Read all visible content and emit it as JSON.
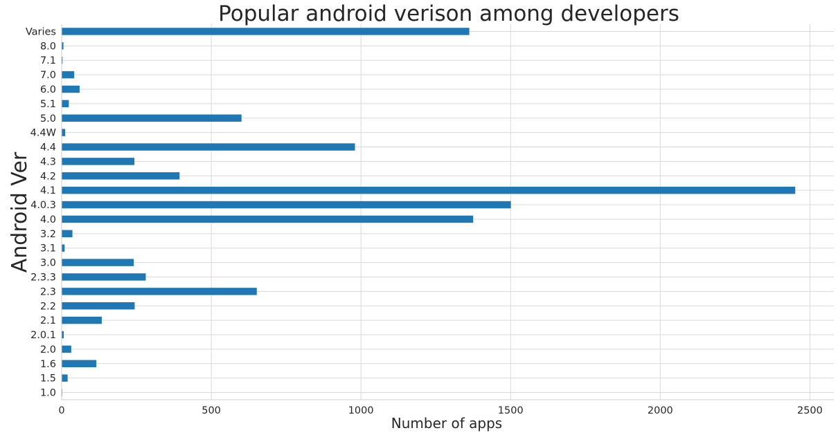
{
  "chart_data": {
    "type": "bar",
    "orientation": "horizontal",
    "title": "Popular android verison among developers",
    "xlabel": "Number of apps",
    "ylabel": "Android Ver",
    "categories": [
      "1.0",
      "1.5",
      "1.6",
      "2.0",
      "2.0.1",
      "2.1",
      "2.2",
      "2.3",
      "2.3.3",
      "3.0",
      "3.1",
      "3.2",
      "4.0",
      "4.0.3",
      "4.1",
      "4.2",
      "4.3",
      "4.4",
      "4.4W",
      "5.0",
      "5.1",
      "6.0",
      "7.0",
      "7.1",
      "8.0",
      "Varies"
    ],
    "values": [
      2,
      20,
      116,
      32,
      7,
      134,
      244,
      652,
      281,
      241,
      10,
      36,
      1375,
      1501,
      2451,
      394,
      243,
      980,
      12,
      601,
      24,
      60,
      42,
      3,
      6,
      1362
    ],
    "xlim": [
      0,
      2580
    ],
    "xticks": [
      0,
      500,
      1000,
      1500,
      2000,
      2500
    ],
    "grid": true,
    "legend": "none",
    "colors": {
      "bar": "#1f77b4",
      "grid": "#d9d9d9",
      "text": "#262626",
      "axis": "#cccccc"
    }
  }
}
